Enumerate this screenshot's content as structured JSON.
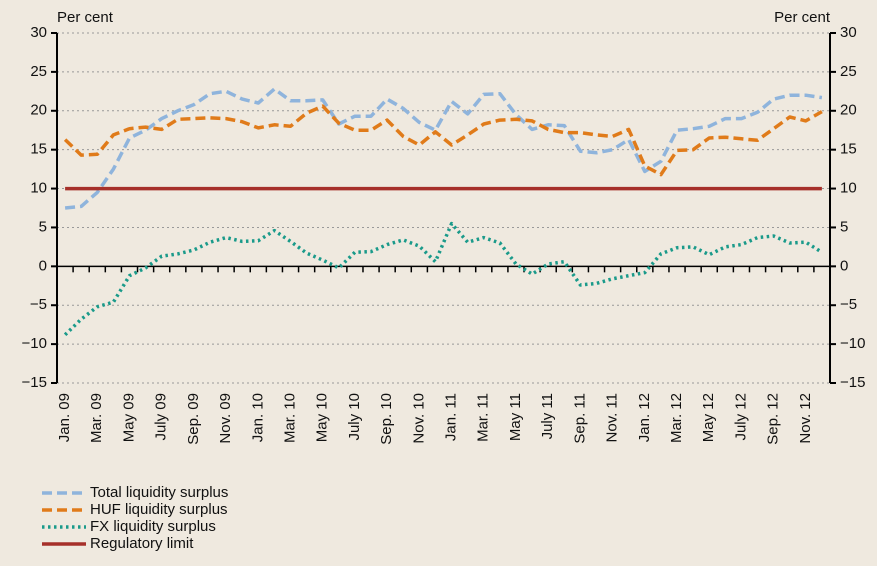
{
  "chart_data": {
    "type": "line",
    "y_label": "Per cent",
    "y2_label": "Per cent",
    "categories": [
      "Jan. 09",
      null,
      "Mar. 09",
      null,
      "May 09",
      null,
      "July 09",
      null,
      "Sep. 09",
      null,
      "Nov. 09",
      null,
      "Jan. 10",
      null,
      "Mar. 10",
      null,
      "May 10",
      null,
      "July 10",
      null,
      "Sep. 10",
      null,
      "Nov. 10",
      null,
      "Jan. 11",
      null,
      "Mar. 11",
      null,
      "May 11",
      null,
      "July 11",
      null,
      "Sep. 11",
      null,
      "Nov. 11",
      null,
      "Jan. 12",
      null,
      "Mar. 12",
      null,
      "May 12",
      null,
      "July 12",
      null,
      "Sep. 12",
      null,
      "Nov. 12",
      null
    ],
    "series": [
      {
        "name": "Total liquidity surplus",
        "color": "#8fb4dc",
        "dash": "dashed",
        "values": [
          7.5,
          7.7,
          9.5,
          12.5,
          16.5,
          17.5,
          19,
          20,
          20.8,
          22.2,
          22.5,
          21.5,
          21,
          22.8,
          21.3,
          21.3,
          21.4,
          18.3,
          19.3,
          19.3,
          21.5,
          20.3,
          18.5,
          17.5,
          21.2,
          19.6,
          22.1,
          22.2,
          19.5,
          17.6,
          18.2,
          18.1,
          14.8,
          14.6,
          15,
          16.3,
          12.2,
          13.5,
          17.5,
          17.7,
          18,
          19,
          19,
          19.8,
          21.5,
          22,
          22,
          21.7
        ]
      },
      {
        "name": "HUF liquidity surplus",
        "color": "#e07b1a",
        "dash": "dashed",
        "values": [
          16.3,
          14.3,
          14.4,
          16.9,
          17.7,
          17.9,
          17.6,
          18.9,
          19,
          19.1,
          19,
          18.6,
          17.8,
          18.2,
          18,
          19.7,
          20.6,
          18.4,
          17.5,
          17.5,
          18.8,
          16.7,
          15.6,
          17.3,
          15.6,
          16.9,
          18.3,
          18.8,
          18.9,
          18.7,
          17.6,
          17.2,
          17.2,
          16.9,
          16.7,
          17.6,
          12.9,
          11.8,
          14.9,
          15,
          16.5,
          16.6,
          16.4,
          16.2,
          17.7,
          19.2,
          18.7,
          19.9
        ]
      },
      {
        "name": "FX liquidity surplus",
        "color": "#1a9a8a",
        "dash": "dotted",
        "values": [
          -8.8,
          -6.8,
          -5.2,
          -4.6,
          -1.2,
          -0.2,
          1.3,
          1.6,
          2.1,
          3.1,
          3.7,
          3.2,
          3.3,
          4.6,
          3.2,
          1.7,
          0.8,
          -0.2,
          1.8,
          1.9,
          2.8,
          3.4,
          2.6,
          0.6,
          5.5,
          3.1,
          3.7,
          3.0,
          0.3,
          -1.0,
          0.3,
          0.6,
          -2.4,
          -2.2,
          -1.6,
          -1.2,
          -0.8,
          1.6,
          2.4,
          2.5,
          1.5,
          2.5,
          2.8,
          3.7,
          3.9,
          3.0,
          3.1,
          1.8
        ]
      },
      {
        "name": "Regulatory limit",
        "color": "#a6302a",
        "dash": "solid",
        "values": [
          10,
          10,
          10,
          10,
          10,
          10,
          10,
          10,
          10,
          10,
          10,
          10,
          10,
          10,
          10,
          10,
          10,
          10,
          10,
          10,
          10,
          10,
          10,
          10,
          10,
          10,
          10,
          10,
          10,
          10,
          10,
          10,
          10,
          10,
          10,
          10,
          10,
          10,
          10,
          10,
          10,
          10,
          10,
          10,
          10,
          10,
          10,
          10
        ]
      }
    ],
    "ylim": [
      -15,
      30
    ],
    "yticks": [
      {
        "value": -15,
        "label": "−15"
      },
      {
        "value": -10,
        "label": "−10"
      },
      {
        "value": -5,
        "label": "−5"
      },
      0,
      5,
      10,
      15,
      20,
      25,
      30
    ],
    "y2lim": [
      -15,
      30
    ],
    "y2ticks": [
      {
        "value": -15,
        "label": "−15"
      },
      {
        "value": -10,
        "label": "−10"
      },
      {
        "value": -5,
        "label": "−5"
      },
      0,
      5,
      10,
      15,
      20,
      25,
      30
    ],
    "grid": true
  }
}
